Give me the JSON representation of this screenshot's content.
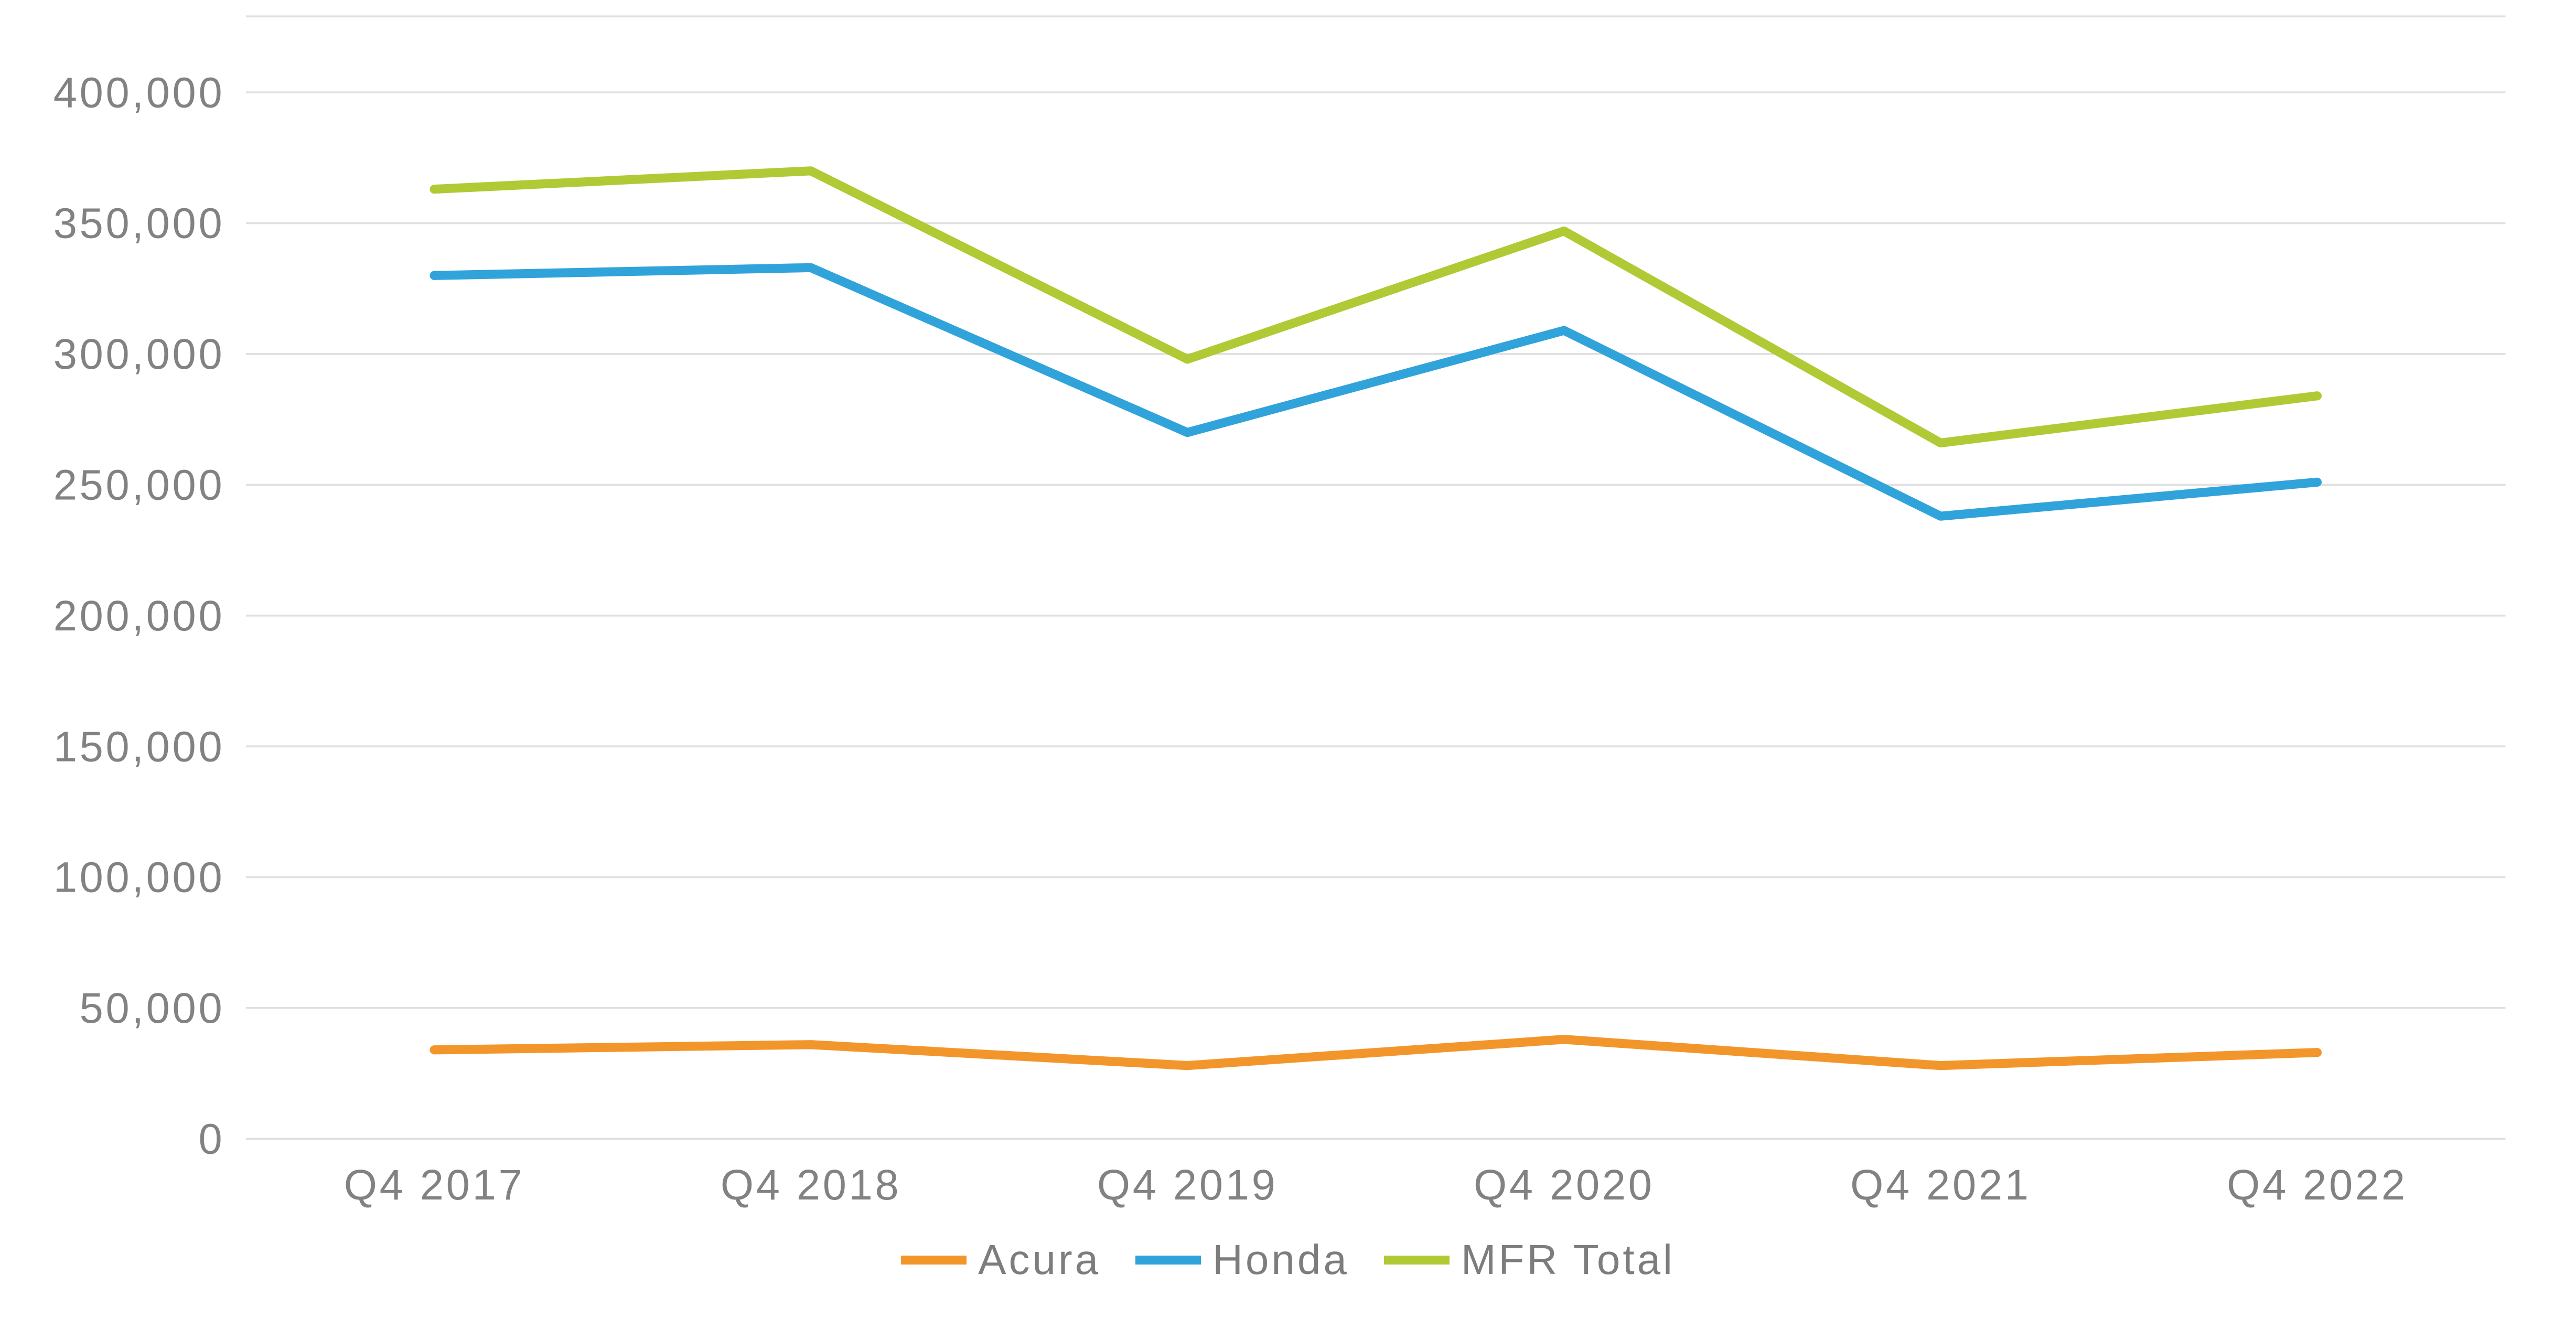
{
  "chart_data": {
    "type": "line",
    "categories": [
      "Q4 2017",
      "Q4 2018",
      "Q4 2019",
      "Q4 2020",
      "Q4 2021",
      "Q4 2022"
    ],
    "series": [
      {
        "name": "Acura",
        "color": "#F2962B",
        "values": [
          34000,
          36000,
          28000,
          38000,
          28000,
          33000
        ]
      },
      {
        "name": "Honda",
        "color": "#31A3DB",
        "values": [
          330000,
          333000,
          270000,
          309000,
          238000,
          251000
        ]
      },
      {
        "name": "MFR Total",
        "color": "#AFCA35",
        "values": [
          363000,
          370000,
          298000,
          347000,
          266000,
          284000
        ]
      }
    ],
    "ylim": [
      0,
      400000
    ],
    "ytick_step": 50000,
    "ytick_labels": [
      "0",
      "50,000",
      "100,000",
      "150,000",
      "200,000",
      "250,000",
      "300,000",
      "350,000",
      "400,000"
    ],
    "grid": "horizontal",
    "legend_position": "bottom-center"
  },
  "colors": {
    "background": "#FFFFFF",
    "gridline": "#E0E0E0",
    "axis_text": "#828282",
    "legend_text": "#7D7D7D"
  }
}
